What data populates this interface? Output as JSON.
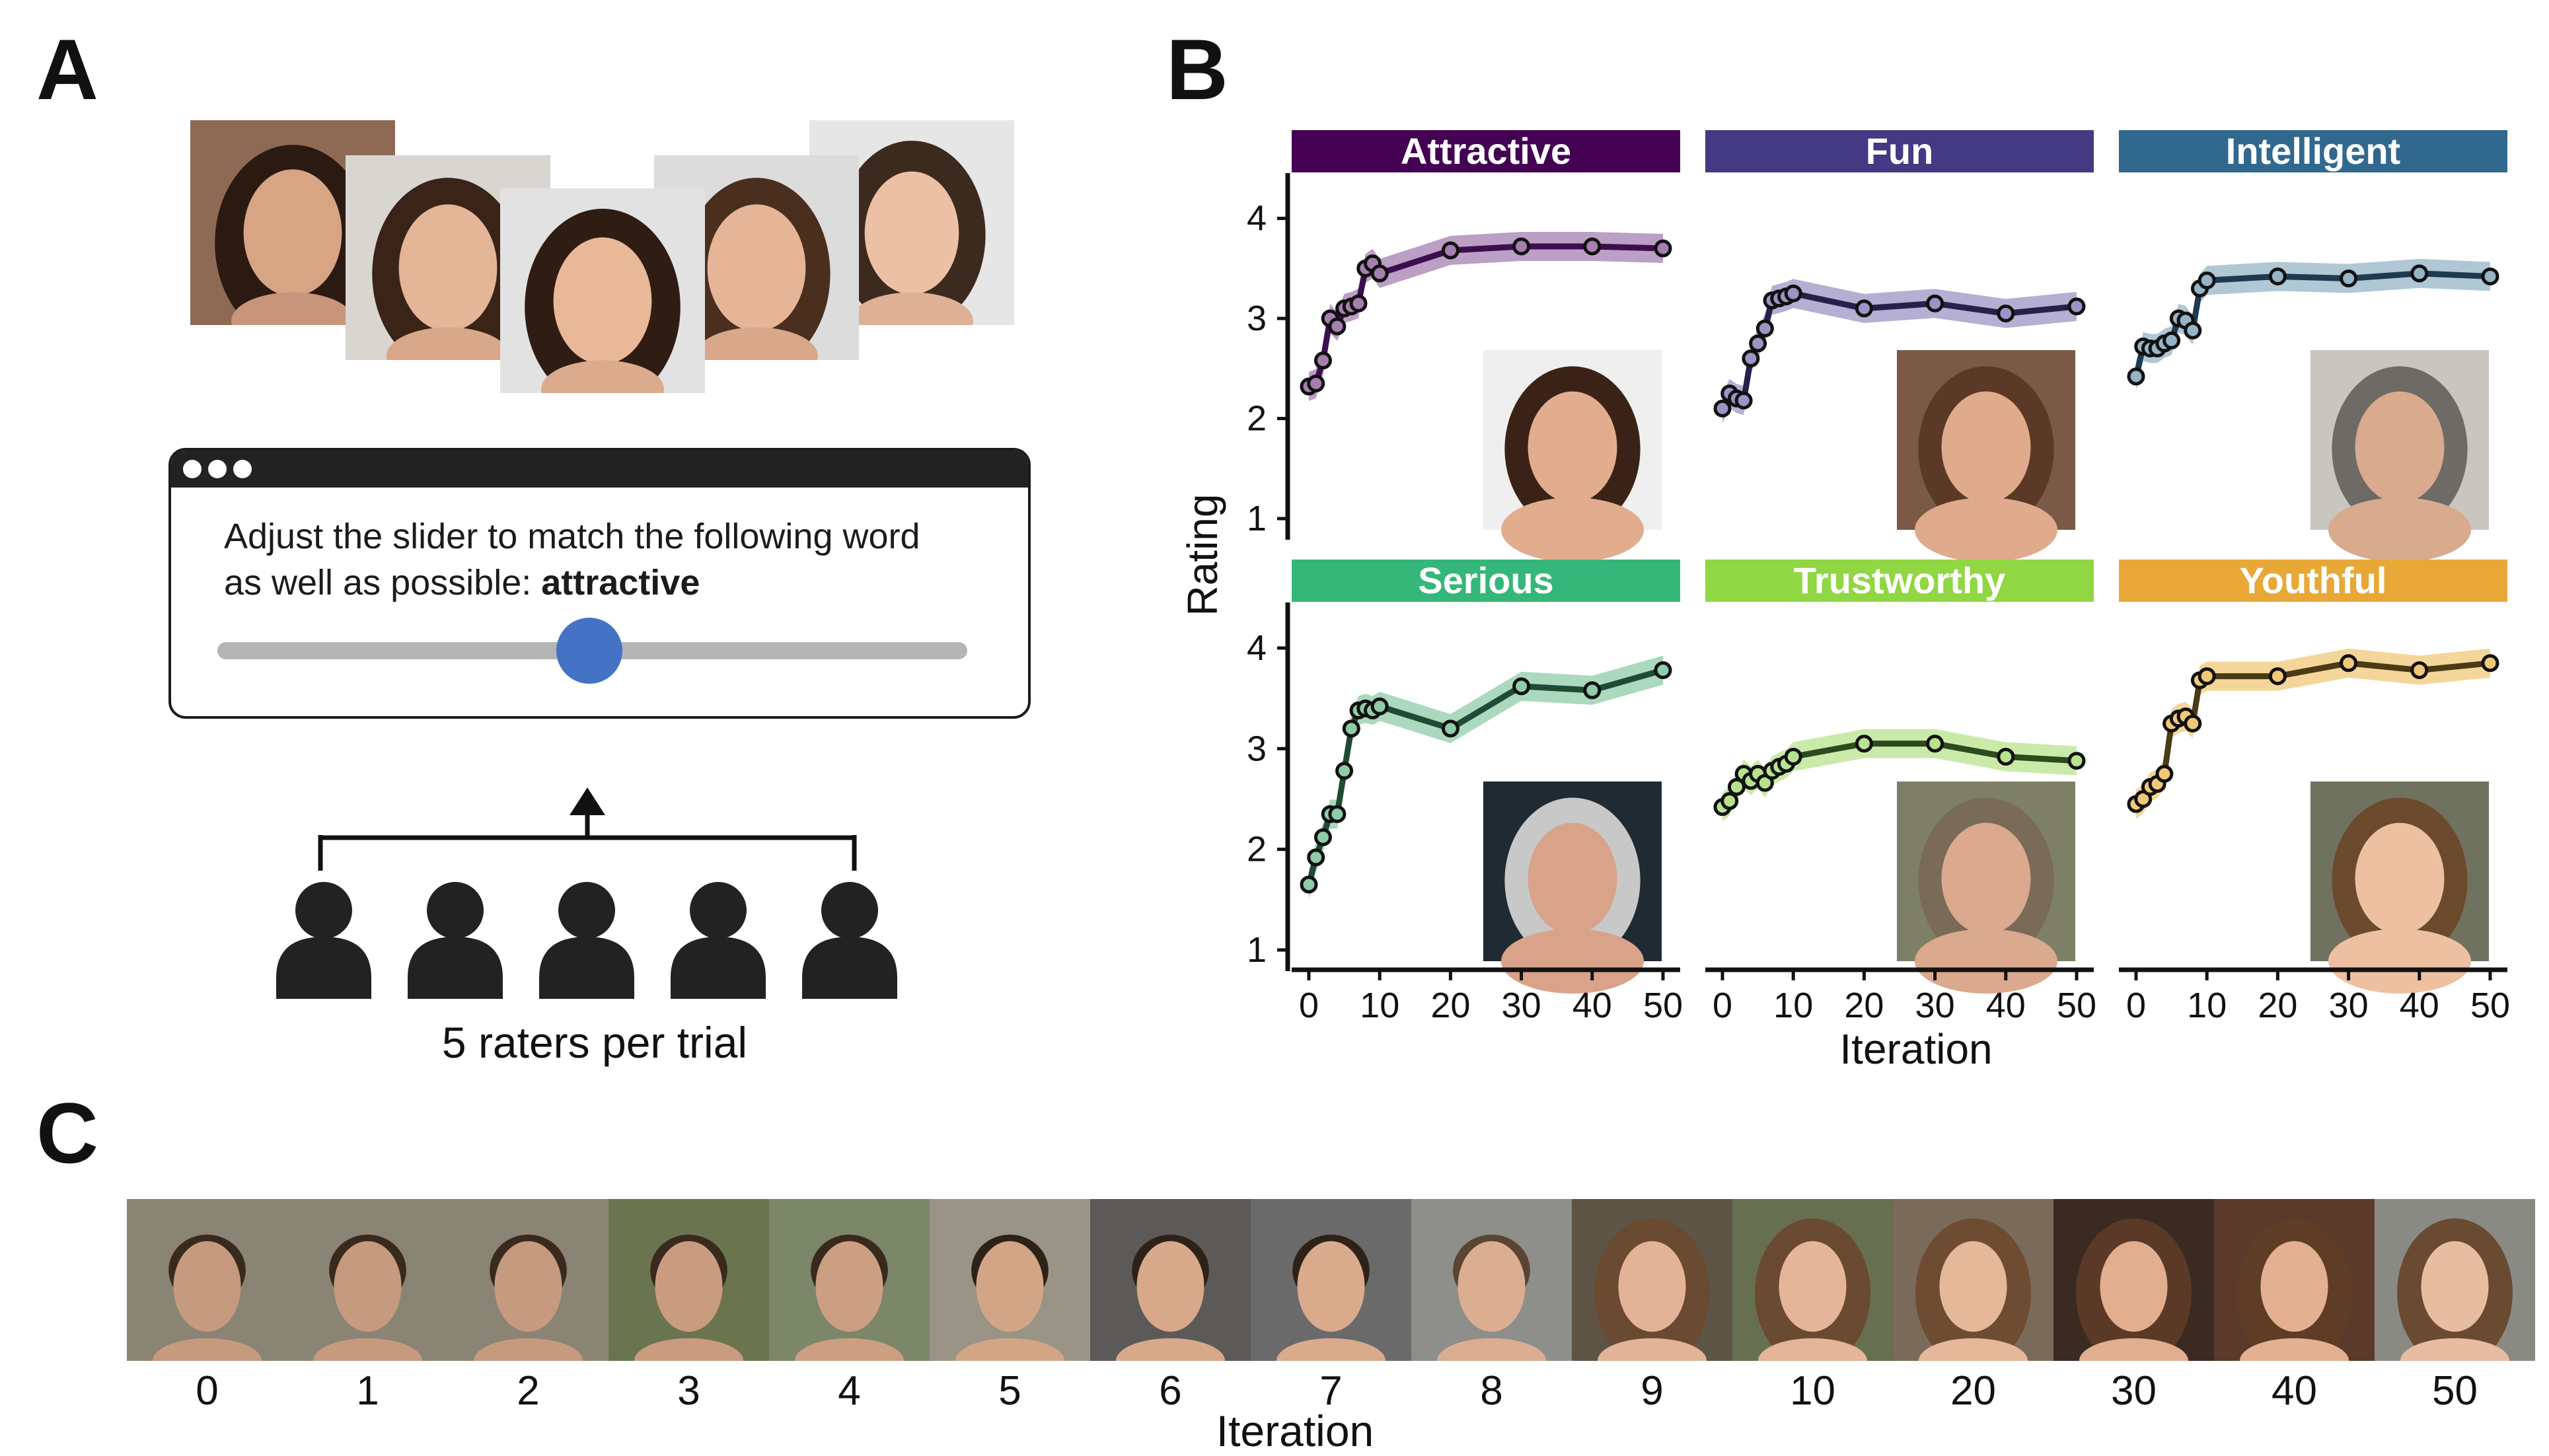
{
  "panel_a": {
    "letter": "A",
    "prompt_line1": "Adjust the slider to match the following word",
    "prompt_line2": "as well as possible: ",
    "prompt_word": "attractive",
    "slider_value": 0.5,
    "raters_caption": "5 raters per trial",
    "rater_count": 5,
    "accent_color": "#4472c4"
  },
  "panel_b": {
    "letter": "B"
  },
  "panel_c": {
    "letter": "C",
    "iterations": [
      "0",
      "1",
      "2",
      "3",
      "4",
      "5",
      "6",
      "7",
      "8",
      "9",
      "10",
      "20",
      "30",
      "40",
      "50"
    ],
    "xlabel": "Iteration"
  },
  "chart_data": {
    "type": "line",
    "ylabel": "Rating",
    "xlabel": "Iteration",
    "ylim": [
      1,
      4.4
    ],
    "xlim": [
      0,
      50
    ],
    "yticks": [
      1,
      2,
      3,
      4
    ],
    "xticks": [
      0,
      10,
      20,
      30,
      40,
      50
    ],
    "x": [
      0,
      1,
      2,
      3,
      4,
      5,
      6,
      7,
      8,
      9,
      10,
      20,
      30,
      40,
      50
    ],
    "series": [
      {
        "name": "Attractive",
        "color": "#440154",
        "line": "#3b0f4f",
        "band": "#a57fb0",
        "values": [
          2.32,
          2.35,
          2.58,
          3.0,
          2.92,
          3.1,
          3.12,
          3.15,
          3.5,
          3.55,
          3.45,
          3.68,
          3.72,
          3.72,
          3.7
        ]
      },
      {
        "name": "Fun",
        "color": "#443983",
        "line": "#26204a",
        "band": "#9b94c4",
        "values": [
          2.1,
          2.25,
          2.2,
          2.18,
          2.6,
          2.75,
          2.9,
          3.18,
          3.2,
          3.22,
          3.25,
          3.1,
          3.15,
          3.05,
          3.12
        ]
      },
      {
        "name": "Intelligent",
        "color": "#31688e",
        "line": "#1d3a50",
        "band": "#95b4c7",
        "values": [
          2.42,
          2.72,
          2.7,
          2.7,
          2.75,
          2.78,
          3.0,
          2.98,
          2.88,
          3.3,
          3.38,
          3.42,
          3.4,
          3.45,
          3.42
        ]
      },
      {
        "name": "Serious",
        "color": "#35b779",
        "line": "#1f4a35",
        "band": "#8fcca8",
        "values": [
          1.65,
          1.92,
          2.12,
          2.35,
          2.35,
          2.78,
          3.2,
          3.38,
          3.4,
          3.38,
          3.42,
          3.2,
          3.62,
          3.58,
          3.78
        ]
      },
      {
        "name": "Trustworthy",
        "color": "#90d743",
        "line": "#2b4a1e",
        "band": "#b8e38e",
        "values": [
          2.42,
          2.48,
          2.62,
          2.75,
          2.68,
          2.75,
          2.66,
          2.78,
          2.82,
          2.85,
          2.92,
          3.05,
          3.05,
          2.92,
          2.88
        ]
      },
      {
        "name": "Youthful",
        "color": "#e8a838",
        "line": "#4a3b14",
        "band": "#f1c878",
        "values": [
          2.45,
          2.5,
          2.62,
          2.65,
          2.75,
          3.25,
          3.3,
          3.32,
          3.25,
          3.68,
          3.72,
          3.72,
          3.85,
          3.78,
          3.85
        ]
      }
    ]
  }
}
